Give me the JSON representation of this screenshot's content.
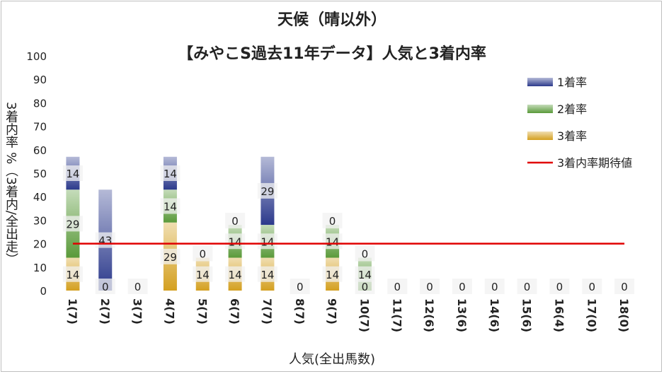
{
  "chart_data": {
    "type": "bar",
    "stacked": true,
    "title": "天候（晴以外）",
    "subtitle": "【みやこS過去11年データ】人気と3着内率",
    "xlabel": "人気(全出馬数)",
    "ylabel": "3着内率 %（3着内/全出走）",
    "ylim": [
      0,
      100
    ],
    "yticks": [
      0,
      10,
      20,
      30,
      40,
      50,
      60,
      70,
      80,
      90,
      100
    ],
    "grid": false,
    "legend_position": "right",
    "categories": [
      "1(7)",
      "2(7)",
      "3(7)",
      "4(7)",
      "5(7)",
      "6(7)",
      "7(7)",
      "8(7)",
      "9(7)",
      "10(7)",
      "11(7)",
      "12(6)",
      "13(6)",
      "14(6)",
      "15(6)",
      "16(4)",
      "17(0)",
      "18(0)"
    ],
    "series": [
      {
        "name": "3着率",
        "color": "#d4a020",
        "values": [
          14,
          0,
          0,
          29,
          14,
          14,
          14,
          0,
          14,
          0,
          0,
          0,
          0,
          0,
          0,
          0,
          0,
          0
        ],
        "labels": [
          "14",
          "0",
          "0",
          "29",
          "14",
          "14",
          "14",
          "0",
          "14",
          "0",
          "0",
          "0",
          "0",
          "0",
          "0",
          "0",
          "0",
          "0"
        ]
      },
      {
        "name": "2着率",
        "color": "#5a9a3a",
        "values": [
          29,
          0,
          0,
          14,
          0,
          14,
          14,
          0,
          14,
          14,
          0,
          0,
          0,
          0,
          0,
          0,
          0,
          0
        ],
        "labels": [
          "29",
          "",
          "",
          "14",
          "",
          "14",
          "14",
          "",
          "14",
          "14",
          "",
          "",
          "",
          "",
          "",
          "",
          "",
          ""
        ]
      },
      {
        "name": "1着率",
        "color": "#2c3a8c",
        "values": [
          14,
          43,
          0,
          14,
          0,
          0,
          29,
          0,
          0,
          0,
          0,
          0,
          0,
          0,
          0,
          0,
          0,
          0
        ],
        "labels": [
          "14",
          "43",
          "",
          "14",
          "0",
          "0",
          "29",
          "",
          "0",
          "0",
          "",
          "",
          "",
          "",
          "",
          "",
          "",
          ""
        ]
      }
    ],
    "reference_line": {
      "name": "3着内率期待値",
      "value": 20,
      "color": "#e00000"
    }
  }
}
